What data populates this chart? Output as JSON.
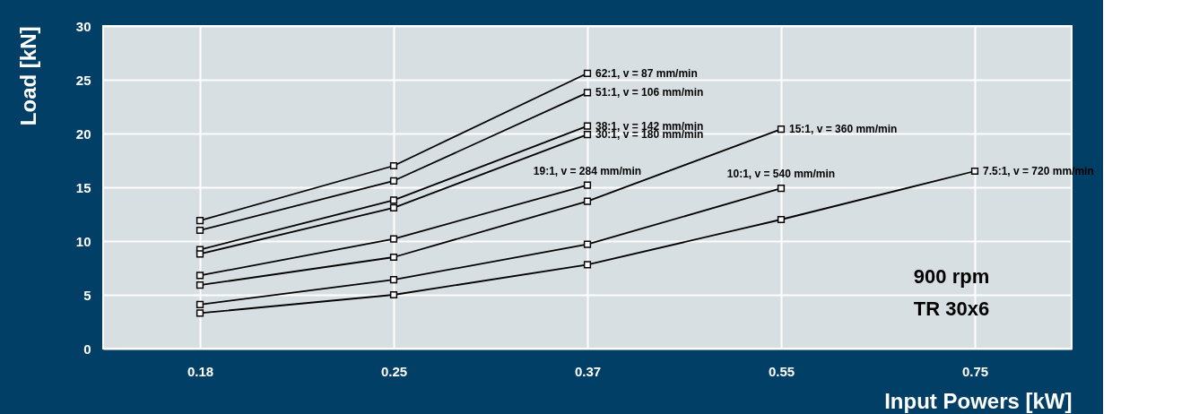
{
  "chart_data": {
    "type": "line",
    "xlabel": "Input Powers [kW]",
    "ylabel": "Load [kN]",
    "categories": [
      "0.18",
      "0.25",
      "0.37",
      "0.55",
      "0.75"
    ],
    "ylim": [
      0,
      30
    ],
    "yticks": [
      0,
      5,
      10,
      15,
      20,
      25,
      30
    ],
    "grid": true,
    "marker": "square",
    "line_style": "solid",
    "series": [
      {
        "name": "62:1, v = 87 mm/min",
        "color": "#000000",
        "values": [
          11.9,
          17.0,
          25.6,
          null,
          null
        ]
      },
      {
        "name": "51:1, v = 106 mm/min",
        "color": "#000000",
        "values": [
          11.0,
          15.6,
          23.8,
          null,
          null
        ]
      },
      {
        "name": "38:1, v = 142 mm/min",
        "color": "#000000",
        "values": [
          9.2,
          13.8,
          20.7,
          null,
          null
        ]
      },
      {
        "name": "30:1, v = 180 mm/min",
        "color": "#000000",
        "values": [
          8.8,
          13.1,
          19.9,
          null,
          null
        ]
      },
      {
        "name": "19:1, v = 284 mm/min",
        "color": "#000000",
        "values": [
          6.8,
          10.2,
          15.2,
          null,
          null
        ]
      },
      {
        "name": "15:1, v = 360 mm/min",
        "color": "#000000",
        "values": [
          5.9,
          8.5,
          13.7,
          20.4,
          null
        ]
      },
      {
        "name": "10:1, v = 540 mm/min",
        "color": "#000000",
        "values": [
          4.1,
          6.4,
          9.7,
          14.9,
          null
        ]
      },
      {
        "name": "7.5:1, v = 720 mm/min",
        "color": "#000000",
        "values": [
          3.3,
          5.0,
          7.8,
          12.0,
          16.5
        ]
      }
    ],
    "annotations": [
      "900 rpm",
      "TR 30x6"
    ]
  }
}
